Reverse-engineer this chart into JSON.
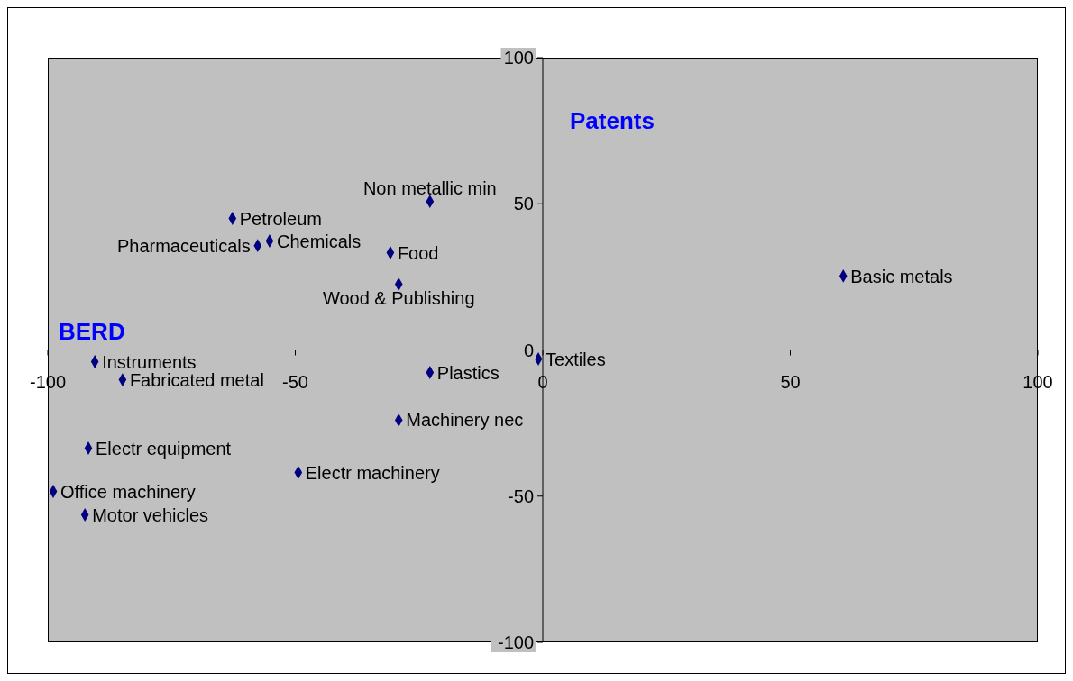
{
  "chart_data": {
    "type": "scatter",
    "xlabel": "BERD",
    "ylabel": "Patents",
    "x": [
      -62.7,
      -57.6,
      -55.2,
      -22.8,
      -30.8,
      -29.1,
      60.7,
      -90.5,
      -84.9,
      -22.8,
      -0.9,
      -29.1,
      -91.8,
      -49.4,
      -98.9,
      -92.5
    ],
    "series": [
      {
        "color": "#000080",
        "values": [
          45.0,
          35.7,
          37.3,
          50.8,
          33.3,
          22.5,
          25.3,
          -4.0,
          -10.2,
          -7.7,
          -3.1,
          -24.0,
          -33.6,
          -41.9,
          -48.4,
          -56.4
        ]
      }
    ],
    "marker": "diamond",
    "grid": false,
    "legend": false,
    "xlim": [
      -100,
      100
    ],
    "xticks": [
      -100,
      -50,
      0,
      50,
      100
    ],
    "ylim": [
      -100,
      100
    ],
    "yticks": [
      -100,
      -50,
      0,
      50,
      100
    ],
    "annotations": [
      {
        "text": "Petroleum",
        "x": -62.7,
        "y": 45.0
      },
      {
        "text": "Pharmaceuticals",
        "x": -57.6,
        "y": 35.7
      },
      {
        "text": "Chemicals",
        "x": -55.2,
        "y": 37.3
      },
      {
        "text": "Non metallic min",
        "x": -22.8,
        "y": 50.8
      },
      {
        "text": "Food",
        "x": -30.8,
        "y": 33.3
      },
      {
        "text": "Wood & Publishing",
        "x": -29.1,
        "y": 22.5
      },
      {
        "text": "Basic metals",
        "x": 60.7,
        "y": 25.3
      },
      {
        "text": "Instruments",
        "x": -90.5,
        "y": -4.0
      },
      {
        "text": "Fabricated metal",
        "x": -84.9,
        "y": -10.2
      },
      {
        "text": "Plastics",
        "x": -22.8,
        "y": -7.7
      },
      {
        "text": "Textiles",
        "x": -0.9,
        "y": -3.1
      },
      {
        "text": "Machinery nec",
        "x": -29.1,
        "y": -24.0
      },
      {
        "text": "Electr equipment",
        "x": -91.8,
        "y": -33.6
      },
      {
        "text": "Electr machinery",
        "x": -49.4,
        "y": -41.9
      },
      {
        "text": "Office machinery",
        "x": -98.9,
        "y": -48.4
      },
      {
        "text": "Motor vehicles",
        "x": -92.5,
        "y": -56.4
      }
    ]
  }
}
